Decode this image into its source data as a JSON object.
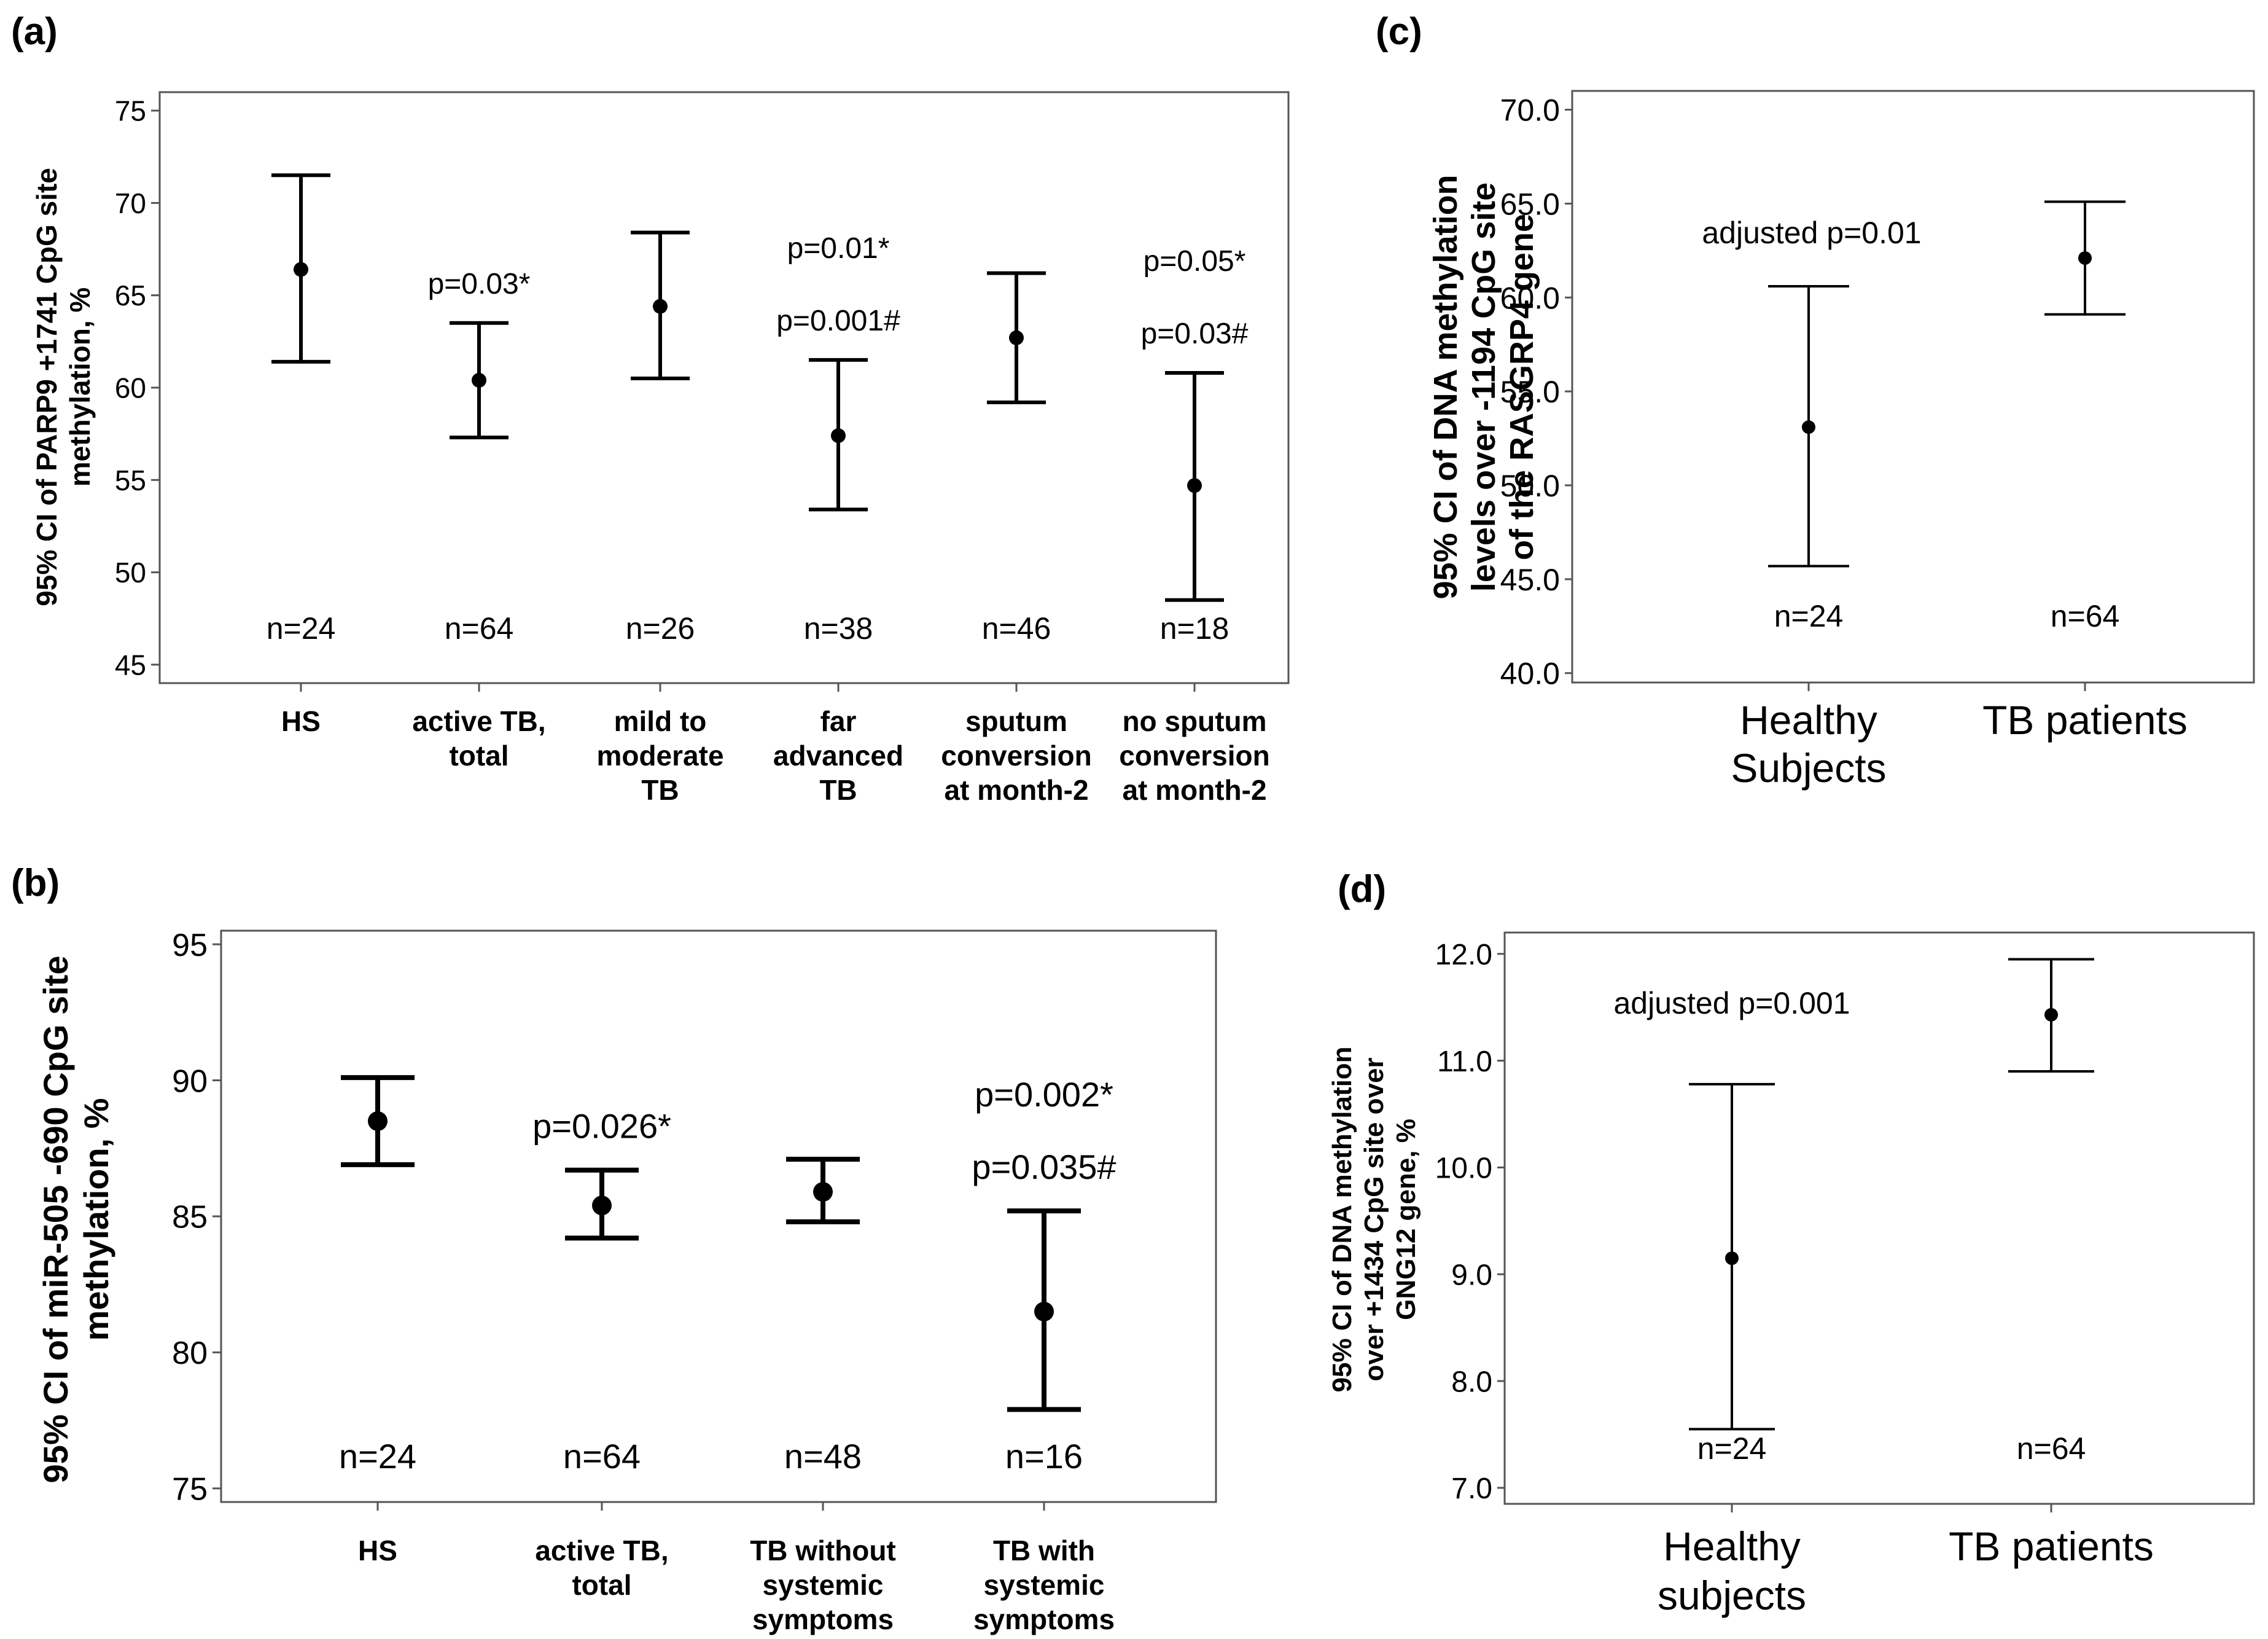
{
  "panels": [
    {
      "label": "(a)",
      "chart_data": {
        "type": "errorbar",
        "ylabel": [
          "95% CI of PARP9 +1741 CpG site",
          "methylation, %"
        ],
        "ylim": [
          44,
          76
        ],
        "yticks": [
          45,
          50,
          55,
          60,
          65,
          70,
          75
        ],
        "categories": [
          [
            "HS"
          ],
          [
            "active TB,",
            "total"
          ],
          [
            "mild to",
            "moderate",
            "TB"
          ],
          [
            "far",
            "advanced",
            "TB"
          ],
          [
            "sputum",
            "conversion",
            "at month-2"
          ],
          [
            "no sputum",
            "conversion",
            "at month-2"
          ]
        ],
        "series": [
          {
            "means": [
              66.4,
              60.4,
              64.4,
              57.4,
              62.7,
              54.7
            ],
            "lower": [
              61.4,
              57.3,
              60.5,
              53.4,
              59.2,
              48.5
            ],
            "upper": [
              71.5,
              63.5,
              68.4,
              61.5,
              66.2,
              60.8
            ]
          }
        ],
        "n_labels": [
          "n=24",
          "n=64",
          "n=26",
          "n=38",
          "n=46",
          "n=18"
        ],
        "p_annotations": [
          {
            "category": 1,
            "lines": [
              "p=0.03*"
            ]
          },
          {
            "category": 3,
            "lines": [
              "p=0.01*",
              "p=0.001#"
            ]
          },
          {
            "category": 5,
            "lines": [
              "p=0.05*",
              "p=0.03#"
            ]
          }
        ]
      }
    },
    {
      "label": "(b)",
      "chart_data": {
        "type": "errorbar",
        "ylabel": [
          "95% CI of miR-505 -690 CpG site",
          "methylation, %"
        ],
        "ylim": [
          74.5,
          95.5
        ],
        "yticks": [
          75,
          80,
          85,
          90,
          95
        ],
        "categories": [
          [
            "HS"
          ],
          [
            "active TB,",
            "total"
          ],
          [
            "TB without",
            "systemic",
            "symptoms"
          ],
          [
            "TB with",
            "systemic",
            "symptoms"
          ]
        ],
        "series": [
          {
            "means": [
              88.5,
              85.4,
              85.9,
              81.5
            ],
            "lower": [
              86.9,
              84.2,
              84.8,
              77.9
            ],
            "upper": [
              90.1,
              86.7,
              87.1,
              85.2
            ]
          }
        ],
        "n_labels": [
          "n=24",
          "n=64",
          "n=48",
          "n=16"
        ],
        "p_annotations": [
          {
            "category": 1,
            "lines": [
              "p=0.026*"
            ]
          },
          {
            "category": 3,
            "lines": [
              "p=0.002*",
              "p=0.035#"
            ]
          }
        ]
      }
    },
    {
      "label": "(c)",
      "chart_data": {
        "type": "errorbar",
        "ylabel": [
          "95% CI of DNA methylation",
          "levels over -1194 CpG site",
          "of the RASGRP4 gene"
        ],
        "ylim": [
          39.5,
          71
        ],
        "yticks": [
          "40.0",
          "45.0",
          "50.0",
          "55.0",
          "60.0",
          "65.0",
          "70.0"
        ],
        "categories": [
          [
            "Healthy",
            "Subjects"
          ],
          [
            "TB patients"
          ]
        ],
        "series": [
          {
            "means": [
              53.1,
              62.1
            ],
            "lower": [
              45.7,
              59.1
            ],
            "upper": [
              60.6,
              65.1
            ]
          }
        ],
        "n_labels": [
          "n=24",
          "n=64"
        ],
        "p_annotations": [
          {
            "category": 0,
            "lines": [
              "adjusted p=0.01"
            ]
          }
        ]
      }
    },
    {
      "label": "(d)",
      "chart_data": {
        "type": "errorbar",
        "ylabel": [
          "95% CI of DNA methylation",
          "over +1434 CpG site over",
          "GNG12 gene, %"
        ],
        "ylim": [
          6.85,
          12.2
        ],
        "yticks": [
          "7.0",
          "8.0",
          "9.0",
          "10.0",
          "11.0",
          "12.0"
        ],
        "categories": [
          [
            "Healthy",
            "subjects"
          ],
          [
            "TB patients"
          ]
        ],
        "series": [
          {
            "means": [
              9.15,
              11.43
            ],
            "lower": [
              7.55,
              10.9
            ],
            "upper": [
              10.78,
              11.95
            ]
          }
        ],
        "n_labels": [
          "n=24",
          "n=64"
        ],
        "p_annotations": [
          {
            "category": 0,
            "lines": [
              "adjusted p=0.001"
            ]
          }
        ]
      }
    }
  ]
}
